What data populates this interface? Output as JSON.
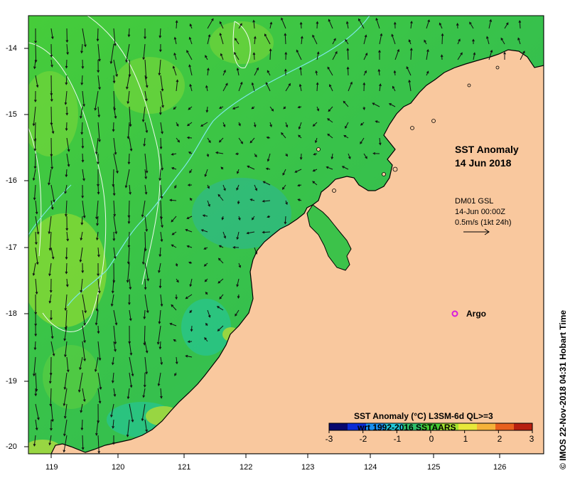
{
  "title": {
    "line1": "SST Anomaly",
    "line2": "14 Jun 2018"
  },
  "current_info": {
    "model": "DM01 GSL",
    "time": "14-Jun 00:00Z",
    "scale": "0.5m/s (1kt 24h)"
  },
  "argo": {
    "label": "Argo",
    "marker_color": "#d81bdc",
    "lon": 125.35,
    "lat": -18.0
  },
  "colorbar": {
    "title_line1": "SST Anomaly (°C) L3SM-6d QL>=3",
    "title_line2": "wrt 1992-2016 SSTAARS",
    "ticks": [
      "-3",
      "-2",
      "-1",
      "0",
      "1",
      "2",
      "3"
    ],
    "colors": [
      "#08086e",
      "#0b2bd6",
      "#1a8ff0",
      "#22c7d8",
      "#2fc06a",
      "#44cc33",
      "#a6e22e",
      "#e8e83a",
      "#f5b23a",
      "#e8601e",
      "#b82010"
    ]
  },
  "axes": {
    "lon_ticks": [
      "119",
      "120",
      "121",
      "122",
      "123",
      "124",
      "125",
      "126"
    ],
    "lat_ticks": [
      "-14",
      "-15",
      "-16",
      "-17",
      "-18",
      "-19",
      "-20"
    ]
  },
  "credit": "© IMOS 22-Nov-2018 04:31 Hobart Time",
  "colors": {
    "land": "#f9c89e",
    "ocean": "#3cc83c",
    "bathymetry_contour": "#7de8e8",
    "isobath": "#ffffff",
    "arrow": "#111111"
  }
}
